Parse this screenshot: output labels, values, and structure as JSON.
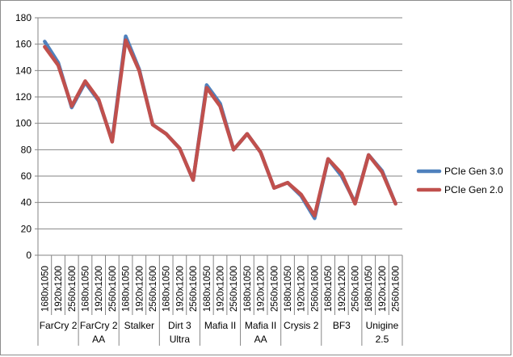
{
  "chart_data": {
    "type": "line",
    "title": "",
    "xlabel": "",
    "ylabel": "",
    "ylim": [
      0,
      180
    ],
    "yticks": [
      0,
      20,
      40,
      60,
      80,
      100,
      120,
      140,
      160,
      180
    ],
    "grid": true,
    "legend_position": "right",
    "categories": [
      "1680x1050",
      "1920x1200",
      "2560x1600",
      "1680x1050",
      "1920x1200",
      "2560x1600",
      "1680x1050",
      "1920x1200",
      "2560x1600",
      "1680x1050",
      "1920x1200",
      "2560x1600",
      "1680x1050",
      "1920x1200",
      "2560x1600",
      "1680x1050",
      "1920x1200",
      "2560x1600",
      "1680x1050",
      "1920x1200",
      "2560x1600",
      "1680x1050",
      "1920x1200",
      "2560x1600",
      "1680x1050",
      "1920x1200",
      "2560x1600"
    ],
    "groups": [
      {
        "label": [
          "FarCry 2"
        ]
      },
      {
        "label": [
          "FarCry 2",
          "AA"
        ]
      },
      {
        "label": [
          "Stalker"
        ]
      },
      {
        "label": [
          "Dirt 3",
          "Ultra"
        ]
      },
      {
        "label": [
          "Mafia II"
        ]
      },
      {
        "label": [
          "Mafia II",
          "AA"
        ]
      },
      {
        "label": [
          "Crysis 2"
        ]
      },
      {
        "label": [
          "BF3"
        ]
      },
      {
        "label": [
          "Unigine",
          "2.5"
        ]
      }
    ],
    "series": [
      {
        "name": "PCIe Gen 3.0",
        "color": "#4f81bd",
        "values": [
          162,
          146,
          112,
          131,
          117,
          87,
          166,
          141,
          99,
          92,
          81,
          57,
          129,
          115,
          80,
          92,
          78,
          51,
          55,
          45,
          28,
          73,
          60,
          40,
          76,
          64,
          39
        ]
      },
      {
        "name": "PCIe Gen 2.0",
        "color": "#c0504d",
        "values": [
          158,
          144,
          113,
          132,
          118,
          86,
          163,
          140,
          99,
          92,
          81,
          57,
          127,
          113,
          80,
          92,
          78,
          51,
          55,
          46,
          30,
          73,
          62,
          39,
          76,
          63,
          39
        ]
      }
    ]
  }
}
